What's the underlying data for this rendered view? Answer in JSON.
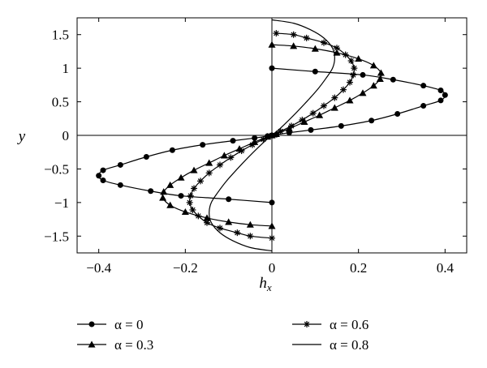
{
  "chart_data": {
    "type": "line",
    "xlabel": "h",
    "xlabel_sub": "x",
    "ylabel": "y",
    "xlim": [
      -0.45,
      0.45
    ],
    "ylim": [
      -1.75,
      1.75
    ],
    "xticks": [
      -0.4,
      -0.2,
      0,
      0.2,
      0.4
    ],
    "xtick_labels": [
      "−0.4",
      "−0.2",
      "0",
      "0.2",
      "0.4"
    ],
    "yticks": [
      1.5,
      1,
      0.5,
      0,
      -0.5,
      -1,
      -1.5
    ],
    "ytick_labels": [
      "1.5",
      "1",
      "0.5",
      "0",
      "−0.5",
      "−1",
      "−1.5"
    ],
    "grid": false,
    "legend_position": "bottom",
    "series": [
      {
        "name": "α = 0",
        "marker": "circle",
        "points": [
          [
            0,
            1.0
          ],
          [
            0.1,
            0.95
          ],
          [
            0.21,
            0.9
          ],
          [
            0.28,
            0.83
          ],
          [
            0.35,
            0.74
          ],
          [
            0.39,
            0.67
          ],
          [
            0.4,
            0.6
          ],
          [
            0.39,
            0.52
          ],
          [
            0.35,
            0.44
          ],
          [
            0.29,
            0.32
          ],
          [
            0.23,
            0.22
          ],
          [
            0.16,
            0.14
          ],
          [
            0.09,
            0.08
          ],
          [
            0.04,
            0.04
          ],
          [
            0.01,
            0.01
          ],
          [
            0,
            0
          ],
          [
            -0.01,
            -0.01
          ],
          [
            -0.04,
            -0.04
          ],
          [
            -0.09,
            -0.08
          ],
          [
            -0.16,
            -0.14
          ],
          [
            -0.23,
            -0.22
          ],
          [
            -0.29,
            -0.32
          ],
          [
            -0.35,
            -0.44
          ],
          [
            -0.39,
            -0.52
          ],
          [
            -0.4,
            -0.6
          ],
          [
            -0.39,
            -0.67
          ],
          [
            -0.35,
            -0.74
          ],
          [
            -0.28,
            -0.83
          ],
          [
            -0.21,
            -0.9
          ],
          [
            -0.1,
            -0.95
          ],
          [
            0,
            -1.0
          ]
        ]
      },
      {
        "name": "α = 0.3",
        "marker": "triangle",
        "points": [
          [
            0,
            1.35
          ],
          [
            0.05,
            1.33
          ],
          [
            0.1,
            1.29
          ],
          [
            0.15,
            1.23
          ],
          [
            0.2,
            1.14
          ],
          [
            0.235,
            1.04
          ],
          [
            0.252,
            0.93
          ],
          [
            0.25,
            0.84
          ],
          [
            0.235,
            0.74
          ],
          [
            0.21,
            0.63
          ],
          [
            0.18,
            0.52
          ],
          [
            0.145,
            0.41
          ],
          [
            0.11,
            0.3
          ],
          [
            0.075,
            0.2
          ],
          [
            0.04,
            0.1
          ],
          [
            0.01,
            0.02
          ],
          [
            0,
            0
          ],
          [
            -0.01,
            -0.02
          ],
          [
            -0.04,
            -0.1
          ],
          [
            -0.075,
            -0.2
          ],
          [
            -0.11,
            -0.3
          ],
          [
            -0.145,
            -0.41
          ],
          [
            -0.18,
            -0.52
          ],
          [
            -0.21,
            -0.63
          ],
          [
            -0.235,
            -0.74
          ],
          [
            -0.25,
            -0.84
          ],
          [
            -0.252,
            -0.93
          ],
          [
            -0.235,
            -1.04
          ],
          [
            -0.2,
            -1.14
          ],
          [
            -0.15,
            -1.23
          ],
          [
            -0.1,
            -1.29
          ],
          [
            -0.05,
            -1.33
          ],
          [
            0,
            -1.35
          ]
        ]
      },
      {
        "name": "α = 0.6",
        "marker": "asterisk",
        "points": [
          [
            0.01,
            1.52
          ],
          [
            0.05,
            1.5
          ],
          [
            0.08,
            1.45
          ],
          [
            0.12,
            1.38
          ],
          [
            0.15,
            1.3
          ],
          [
            0.17,
            1.2
          ],
          [
            0.183,
            1.11
          ],
          [
            0.19,
            1.0
          ],
          [
            0.188,
            0.9
          ],
          [
            0.18,
            0.79
          ],
          [
            0.165,
            0.68
          ],
          [
            0.145,
            0.56
          ],
          [
            0.12,
            0.44
          ],
          [
            0.095,
            0.33
          ],
          [
            0.07,
            0.23
          ],
          [
            0.045,
            0.14
          ],
          [
            0.02,
            0.06
          ],
          [
            0,
            0
          ],
          [
            -0.02,
            -0.06
          ],
          [
            -0.045,
            -0.14
          ],
          [
            -0.07,
            -0.23
          ],
          [
            -0.095,
            -0.33
          ],
          [
            -0.12,
            -0.44
          ],
          [
            -0.145,
            -0.56
          ],
          [
            -0.165,
            -0.68
          ],
          [
            -0.18,
            -0.79
          ],
          [
            -0.188,
            -0.9
          ],
          [
            -0.19,
            -1.0
          ],
          [
            -0.183,
            -1.11
          ],
          [
            -0.17,
            -1.2
          ],
          [
            -0.15,
            -1.3
          ],
          [
            -0.12,
            -1.38
          ],
          [
            -0.08,
            -1.45
          ],
          [
            -0.05,
            -1.5
          ],
          [
            0,
            -1.53
          ]
        ]
      },
      {
        "name": "α = 0.8",
        "marker": "none",
        "points": [
          [
            0,
            1.72
          ],
          [
            0.05,
            1.67
          ],
          [
            0.09,
            1.57
          ],
          [
            0.12,
            1.45
          ],
          [
            0.14,
            1.3
          ],
          [
            0.145,
            1.15
          ],
          [
            0.14,
            1.0
          ],
          [
            0.125,
            0.85
          ],
          [
            0.105,
            0.68
          ],
          [
            0.08,
            0.5
          ],
          [
            0.055,
            0.33
          ],
          [
            0.03,
            0.17
          ],
          [
            0.01,
            0.05
          ],
          [
            0,
            0
          ],
          [
            -0.01,
            -0.05
          ],
          [
            -0.03,
            -0.17
          ],
          [
            -0.055,
            -0.33
          ],
          [
            -0.08,
            -0.5
          ],
          [
            -0.105,
            -0.68
          ],
          [
            -0.125,
            -0.85
          ],
          [
            -0.14,
            -1.0
          ],
          [
            -0.145,
            -1.15
          ],
          [
            -0.14,
            -1.3
          ],
          [
            -0.12,
            -1.45
          ],
          [
            -0.09,
            -1.57
          ],
          [
            -0.05,
            -1.67
          ],
          [
            0,
            -1.72
          ]
        ]
      }
    ]
  }
}
